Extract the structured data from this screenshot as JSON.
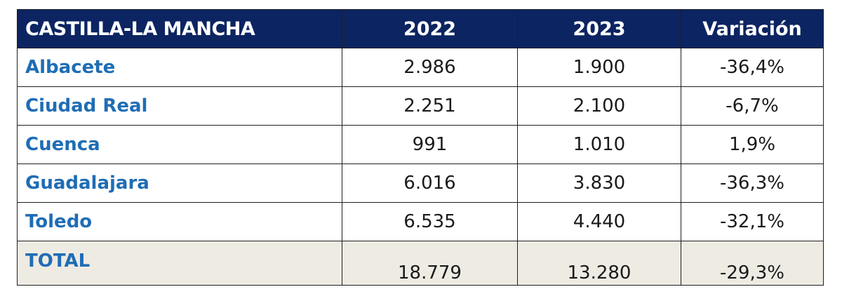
{
  "table": {
    "headers": [
      "CASTILLA-LA MANCHA",
      "2022",
      "2023",
      "Variación"
    ],
    "rows": [
      {
        "name": "Albacete",
        "y2022": "2.986",
        "y2023": "1.900",
        "variacion": "-36,4%"
      },
      {
        "name": "Ciudad Real",
        "y2022": "2.251",
        "y2023": "2.100",
        "variacion": "-6,7%"
      },
      {
        "name": "Cuenca",
        "y2022": "991",
        "y2023": "1.010",
        "variacion": "1,9%"
      },
      {
        "name": "Guadalajara",
        "y2022": "6.016",
        "y2023": "3.830",
        "variacion": "-36,3%"
      },
      {
        "name": "Toledo",
        "y2022": "6.535",
        "y2023": "4.440",
        "variacion": "-32,1%"
      }
    ],
    "total": {
      "name": "TOTAL",
      "y2022": "18.779",
      "y2023": "13.280",
      "variacion": "-29,3%"
    }
  },
  "colors": {
    "header_bg": "#0c2461",
    "header_text": "#ffffff",
    "name_text": "#1f6db5",
    "total_bg": "#eeebe3"
  }
}
